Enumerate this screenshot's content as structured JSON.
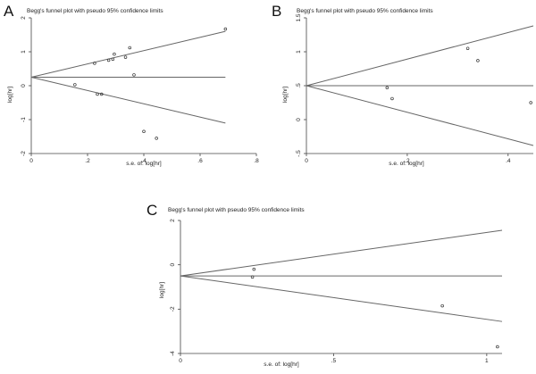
{
  "chart_data": [
    {
      "panel_label": "A",
      "type": "scatter",
      "title": "Begg's funnel plot with pseudo 95% confidence limits",
      "xlabel": "s.e. of: log[hr]",
      "ylabel": "log[hr]",
      "xlim": [
        0,
        0.8
      ],
      "ylim": [
        -2,
        2
      ],
      "xticks": [
        0,
        0.2,
        0.4,
        0.6,
        0.8
      ],
      "xtick_labels": [
        "0",
        ".2",
        ".4",
        ".6",
        ".8"
      ],
      "yticks": [
        -2,
        -1,
        0,
        1,
        2
      ],
      "ytick_labels": [
        "-2",
        "-1",
        "0",
        "1",
        "2"
      ],
      "pooled": 0.25,
      "limit_x_max": 0.69,
      "points": [
        {
          "x": 0.155,
          "y": 0.03
        },
        {
          "x": 0.225,
          "y": 0.66
        },
        {
          "x": 0.235,
          "y": -0.25
        },
        {
          "x": 0.25,
          "y": -0.25
        },
        {
          "x": 0.275,
          "y": 0.75
        },
        {
          "x": 0.29,
          "y": 0.78
        },
        {
          "x": 0.295,
          "y": 0.93
        },
        {
          "x": 0.335,
          "y": 0.84
        },
        {
          "x": 0.35,
          "y": 1.12
        },
        {
          "x": 0.365,
          "y": 0.32
        },
        {
          "x": 0.4,
          "y": -1.35
        },
        {
          "x": 0.445,
          "y": -1.55
        },
        {
          "x": 0.69,
          "y": 1.67
        }
      ]
    },
    {
      "panel_label": "B",
      "type": "scatter",
      "title": "Begg's funnel plot with pseudo 95% confidence limits",
      "xlabel": "s.e. of: log[hr]",
      "ylabel": "log[hr]",
      "xlim": [
        0,
        0.45
      ],
      "ylim": [
        -0.5,
        1.5
      ],
      "xticks": [
        0,
        0.2,
        0.4
      ],
      "xtick_labels": [
        "0",
        ".2",
        ".4"
      ],
      "yticks": [
        -0.5,
        0,
        0.5,
        1,
        1.5
      ],
      "ytick_labels": [
        "-.5",
        "0",
        ".5",
        "1",
        "1.5"
      ],
      "pooled": 0.5,
      "limit_x_max": 0.45,
      "points": [
        {
          "x": 0.16,
          "y": 0.47
        },
        {
          "x": 0.17,
          "y": 0.31
        },
        {
          "x": 0.32,
          "y": 1.05
        },
        {
          "x": 0.34,
          "y": 0.87
        },
        {
          "x": 0.445,
          "y": 0.25
        }
      ]
    },
    {
      "panel_label": "C",
      "type": "scatter",
      "title": "Begg's funnel plot with pseudo 95% confidence limits",
      "xlabel": "s.e. of: log[hr]",
      "ylabel": "log[hr]",
      "xlim": [
        0,
        1.05
      ],
      "ylim": [
        -4,
        2
      ],
      "xticks": [
        0,
        0.5,
        1
      ],
      "xtick_labels": [
        "0",
        ".5",
        "1"
      ],
      "yticks": [
        -4,
        -2,
        0,
        2
      ],
      "ytick_labels": [
        "-4",
        "-2",
        "0",
        "2"
      ],
      "pooled": -0.5,
      "limit_x_max": 1.05,
      "points": [
        {
          "x": 0.24,
          "y": -0.2
        },
        {
          "x": 0.235,
          "y": -0.55
        },
        {
          "x": 0.855,
          "y": -1.85
        },
        {
          "x": 1.035,
          "y": -3.7
        }
      ]
    }
  ]
}
